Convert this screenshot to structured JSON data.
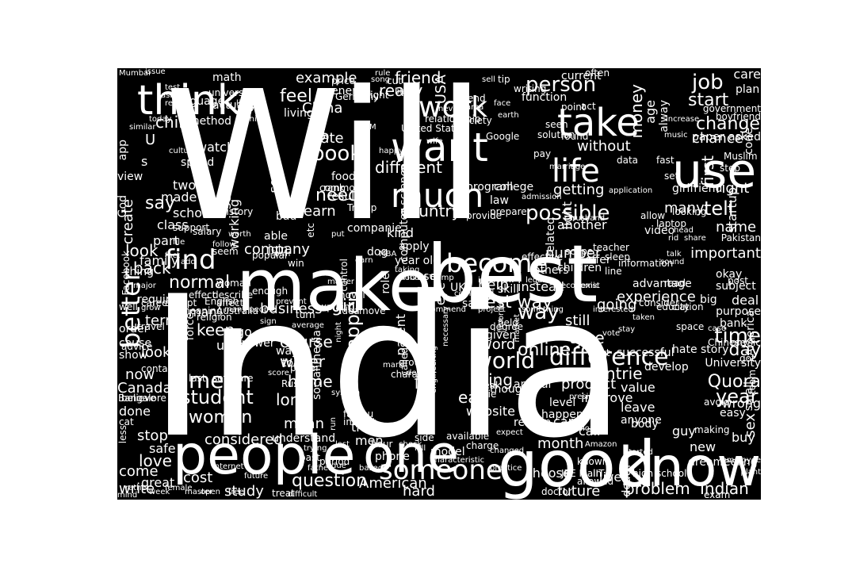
{
  "cloud": {
    "background_color": "#000000",
    "text_color": "#ffffff",
    "words": [
      "Will",
      "India",
      "make",
      "best",
      "people",
      "good",
      "know",
      "one",
      "want",
      "use",
      "think",
      "take",
      "much",
      "life",
      "become",
      "work",
      "someone",
      "find",
      "possible",
      "person",
      "book",
      "job",
      "feel",
      "need",
      "country",
      "start",
      "change",
      "way",
      "difference",
      "mean",
      "world",
      "Quora",
      "student",
      "year",
      "day",
      "time",
      "better",
      "question",
      "money",
      "women",
      "happen",
      "girl",
      "friend",
      "really",
      "USA",
      "China",
      "example",
      "say",
      "look",
      "back",
      "company",
      "business",
      "course",
      "water",
      "home",
      "long",
      "learn",
      "state",
      "give",
      "different",
      "without",
      "getting",
      "another",
      "chance",
      "right",
      "first",
      "many",
      "tell",
      "name",
      "important",
      "experience",
      "number",
      "children",
      "others",
      "help",
      "best way",
      "online",
      "going",
      "still",
      "type",
      "countrie",
      "product",
      "improve",
      "value",
      "leave",
      "anyone",
      "using",
      "eat",
      "animal",
      "thought",
      "website",
      "Indian",
      "problem",
      "future",
      "choose",
      "hard",
      "American",
      "study",
      "cost",
      "great",
      "love",
      "come",
      "write",
      "safe",
      "stop",
      "considered",
      "understand",
      "true",
      "men",
      "phone",
      "model",
      "reason",
      "month",
      "car",
      "call",
      "body",
      "guy",
      "new",
      "sex",
      "buy",
      "wrong",
      "making",
      "dream",
      "feeling",
      "live",
      "Canada",
      "done",
      "now",
      "cause",
      "show",
      "order",
      "term",
      "man",
      "keep",
      "used",
      "answer",
      "way",
      "topic",
      "power",
      "Russia",
      "social media",
      "word",
      "given",
      "degree",
      "field",
      "lot",
      "parent",
      "human",
      "called",
      "mean",
      "go",
      "child",
      "U",
      "s",
      "two",
      "school",
      "made",
      "create",
      "class",
      "part",
      "family",
      "thing",
      "look",
      "normal",
      "see",
      "working",
      "history",
      "bad",
      "able",
      "join",
      "kind",
      "apply",
      "year old",
      "house",
      "role",
      "dog",
      "UK",
      "eye",
      "said",
      "instead",
      "skill",
      "offer",
      "advantage",
      "read",
      "okay",
      "subject",
      "big",
      "post",
      "deal",
      "purpose",
      "bank",
      "America",
      "University",
      "team",
      "hate story",
      "Chinese",
      "got",
      "small",
      "easy",
      "avoid",
      "develop",
      "successful",
      "next",
      "happen",
      "level",
      "available",
      "charge",
      "doctor",
      "exam",
      "JEE Main",
      "IIT",
      "high school",
      "death",
      "known",
      "allowed",
      "step",
      "Muslim",
      "startup",
      "asked",
      "code",
      "care",
      "plan",
      "government",
      "boyfriend",
      "paper",
      "girlfriend",
      "age",
      "alway",
      "light",
      "related",
      "something",
      "law",
      "prepare",
      "provide",
      "college",
      "program",
      "computer science",
      "food",
      "result",
      "rank",
      "Trump",
      "companie",
      "put",
      "etc",
      "common",
      "service",
      "living",
      "speed",
      "watch",
      "method",
      "actually",
      "universe",
      "language",
      "math",
      "view",
      "app",
      "God",
      "Facebook",
      "required",
      "well",
      "career",
      "effect",
      "English",
      "meaning",
      "religion",
      "affect",
      "Australia",
      "travel",
      "force",
      "advice",
      "contact",
      "last",
      "software",
      "believe",
      "less",
      "Bangalore",
      "cat",
      "mind",
      "week",
      "master",
      "open",
      "free",
      "internet",
      "treat",
      "difficult",
      "father",
      "past",
      "period",
      "due",
      "trying",
      "based",
      "practice",
      "side",
      "lost",
      "hour",
      "check",
      "impact",
      "kill",
      "mark",
      "group",
      "design",
      "character",
      "break",
      "die",
      "interview",
      "engineering",
      "boy",
      "expect",
      "consider",
      "education",
      "city",
      "space",
      "case",
      "physic",
      "Pakistan",
      "sleep",
      "scope",
      "effective",
      "legal",
      "head",
      "looking",
      "laptop",
      "allow",
      "video",
      "teacher",
      "solution",
      "found",
      "seen",
      "pay",
      "point",
      "act",
      "often",
      "current",
      "writing",
      "function",
      "sell",
      "tip",
      "face",
      "earth",
      "Google",
      "end",
      "never",
      "relationship",
      "United State",
      "M",
      "song",
      "cut",
      "black",
      "fight",
      "price",
      "rule",
      "energy",
      "Germany",
      "culture",
      "similar",
      "today",
      "real",
      "test",
      "Mumbai",
      "issue",
      "ask",
      "Delhi",
      "accept",
      "describe",
      "woman",
      "seem",
      "popular",
      "form",
      "win",
      "list",
      "fact",
      "file",
      "support",
      "worth",
      "salary",
      "add",
      "follow",
      "major",
      "grow",
      "run",
      "sign",
      "score",
      "average",
      "turn",
      "explain",
      "prevent",
      "enough",
      "novel",
      "many people",
      "matter",
      "move",
      "idea",
      "night",
      "control",
      "earn",
      "MBA",
      "taking",
      "Donald Trump",
      "recommend",
      "necessary",
      "compared",
      "project",
      "favorite",
      "market",
      "area",
      "society",
      "wife",
      "data",
      "fast",
      "set",
      "line",
      "information",
      "economic",
      "exist",
      "interested",
      "taken",
      "stay",
      "vote",
      "changed",
      "president",
      "application",
      "admission",
      "marriage",
      "husband",
      "happy",
      "rid",
      "share",
      "music",
      "increase",
      "talk",
      "sound",
      "employee",
      "plant",
      "started",
      "Amazon",
      "download",
      "characteristic",
      "female",
      "rather",
      "future",
      "famou",
      "system",
      "opinion",
      "visit",
      "send",
      "invest",
      "wear",
      "Japan",
      "lose",
      "white",
      "remove",
      "doe",
      "young",
      "single",
      "studying",
      "happened",
      "Europe",
      "general",
      "partner",
      "site",
      "instance",
      "pro",
      "non",
      "male",
      "picture",
      "brain",
      "everything",
      "everyone",
      "mark",
      "option"
    ]
  }
}
